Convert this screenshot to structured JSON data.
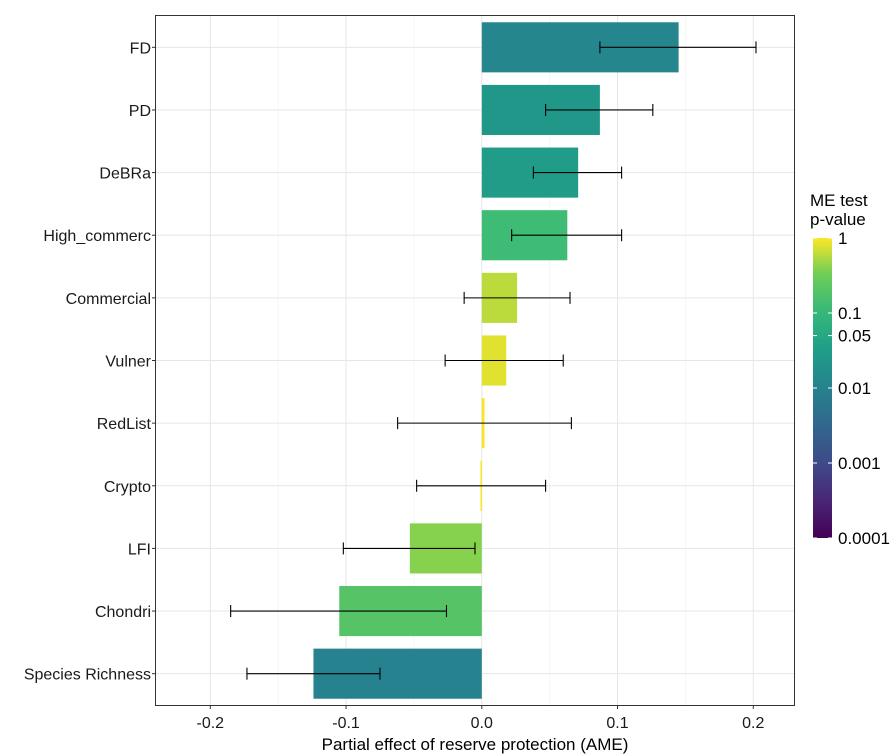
{
  "chart_data": {
    "type": "bar",
    "orientation": "horizontal",
    "xlabel": "Partial effect of reserve protection (AME)",
    "ylabel": "",
    "xlim": [
      -0.24,
      0.23
    ],
    "x_ticks": [
      -0.2,
      -0.1,
      0.0,
      0.1,
      0.2
    ],
    "x_tick_labels": [
      "-0.2",
      "-0.1",
      "0.0",
      "0.1",
      "0.2"
    ],
    "grid": true,
    "categories": [
      "FD",
      "PD",
      "DeBRa",
      "High_commerc",
      "Commercial",
      "Vulner",
      "RedList",
      "Crypto",
      "LFI",
      "Chondri",
      "Species Richness"
    ],
    "values": [
      0.145,
      0.087,
      0.071,
      0.063,
      0.026,
      0.018,
      0.002,
      -0.001,
      -0.053,
      -0.105,
      -0.124
    ],
    "ci_low": [
      0.087,
      0.047,
      0.038,
      0.022,
      -0.013,
      -0.027,
      -0.062,
      -0.048,
      -0.102,
      -0.185,
      -0.173
    ],
    "ci_high": [
      0.202,
      0.126,
      0.103,
      0.103,
      0.065,
      0.06,
      0.066,
      0.047,
      -0.005,
      -0.026,
      -0.075
    ],
    "p_values": [
      0.012,
      0.025,
      0.03,
      0.12,
      0.6,
      0.8,
      0.95,
      0.98,
      0.4,
      0.2,
      0.01
    ],
    "legend": {
      "title_lines": [
        "ME test",
        "p-value"
      ],
      "placement": "right",
      "scale": "log",
      "range": [
        0.0001,
        1
      ],
      "ticks": [
        1,
        0.1,
        0.05,
        0.01,
        0.001,
        0.0001
      ],
      "tick_labels": [
        "1",
        "0.1",
        "0.05",
        "0.01",
        "0.001",
        "0.0001"
      ],
      "colormap": "viridis"
    }
  }
}
